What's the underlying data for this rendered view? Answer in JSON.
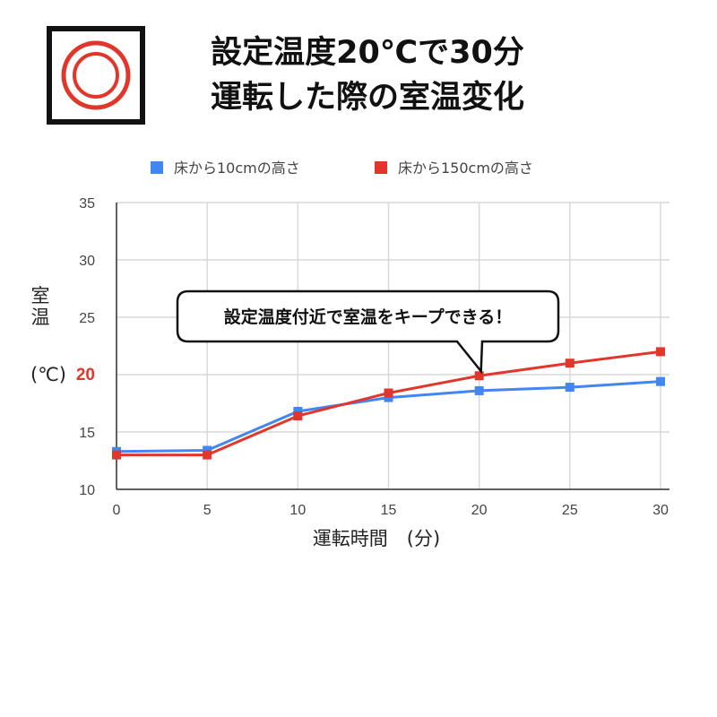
{
  "header": {
    "title_line1": "設定温度20℃で30分",
    "title_line2": "運転した際の室温変化",
    "logo_icon": "concentric-circles-icon"
  },
  "colors": {
    "series_blue": "#4285f4",
    "series_red": "#e2362b",
    "highlight": "#e2362b",
    "logo_ring": "#e2362b",
    "grid": "#d9d9d9"
  },
  "chart_data": {
    "type": "line",
    "x": [
      0,
      5,
      10,
      15,
      20,
      25,
      30
    ],
    "xlim": [
      0,
      30
    ],
    "ylim": [
      10,
      35
    ],
    "xticks": [
      0,
      5,
      10,
      15,
      20,
      25,
      30
    ],
    "yticks": [
      10,
      15,
      20,
      25,
      30,
      35
    ],
    "highlight_ytick": 20,
    "xlabel": "運転時間　(分)",
    "ylabel_lines": [
      "室",
      "温"
    ],
    "ylabel_unit": "(℃)",
    "grid": true,
    "legend_position": "top",
    "series": [
      {
        "name": "床から10cmの高さ",
        "color": "#4285f4",
        "values": [
          13.3,
          13.4,
          16.8,
          18.0,
          18.6,
          18.9,
          19.4
        ]
      },
      {
        "name": "床から150cmの高さ",
        "color": "#e2362b",
        "values": [
          13.0,
          13.0,
          16.4,
          18.4,
          19.9,
          21.0,
          22.0
        ]
      }
    ],
    "annotation": {
      "text": "設定温度付近で室温をキープできる！",
      "points_to_x": 20
    }
  }
}
